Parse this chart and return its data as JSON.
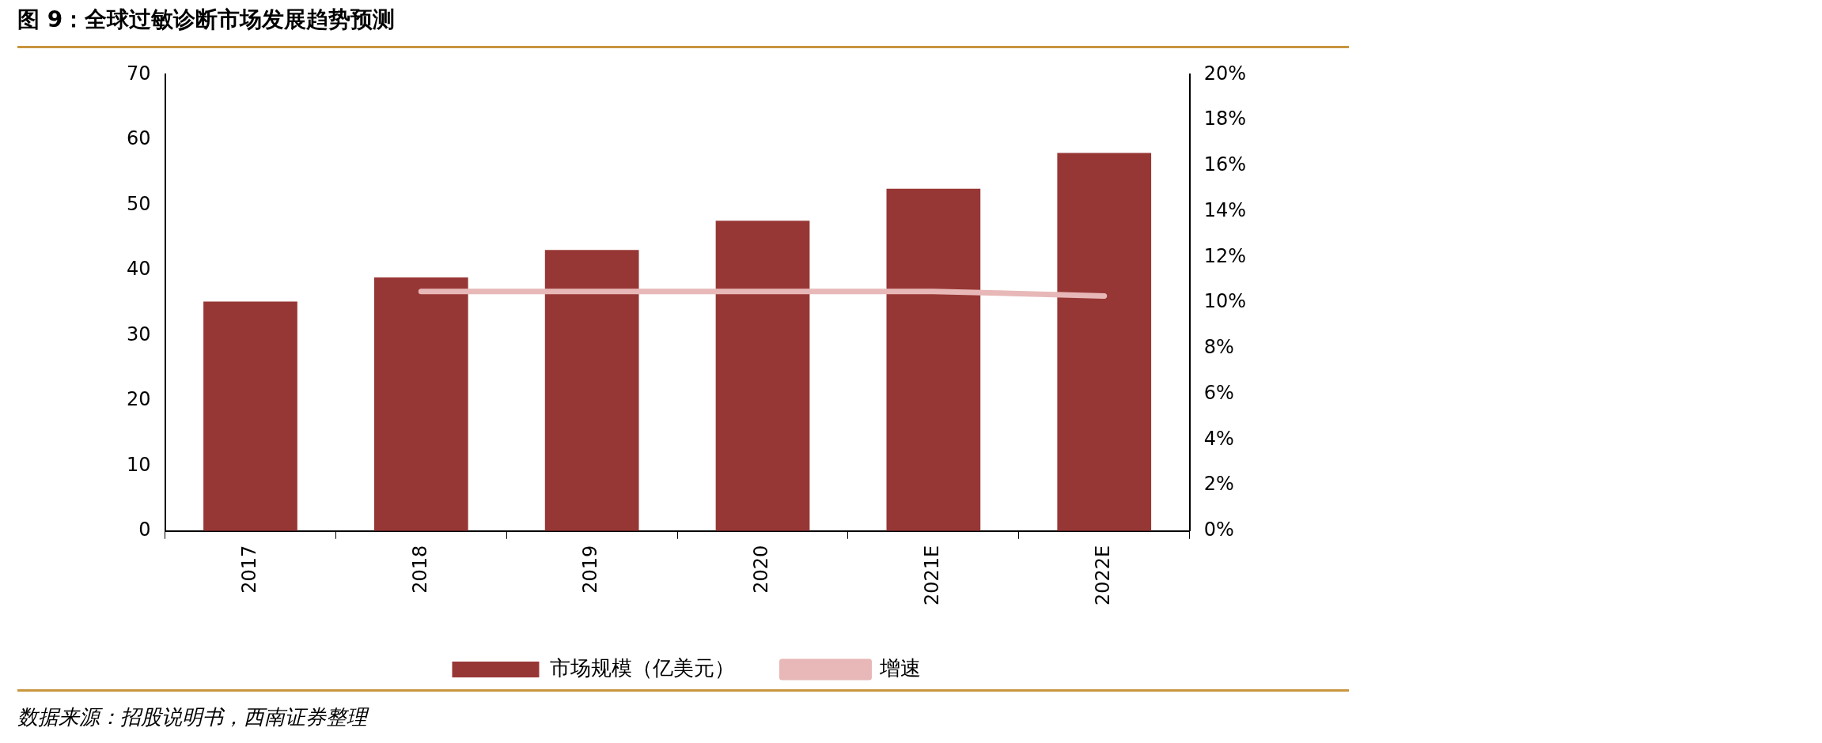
{
  "chart_data": {
    "type": "bar",
    "title": "图 9：全球过敏诊断市场发展趋势预测",
    "categories": [
      "2017",
      "2018",
      "2019",
      "2020",
      "2021E",
      "2022E"
    ],
    "series": [
      {
        "name": "市场规模（亿美元）",
        "color": "#973735",
        "values": [
          35.2,
          38.9,
          43.1,
          47.6,
          52.5,
          58.0
        ]
      },
      {
        "name": "增速",
        "type": "line",
        "axis": "y2",
        "color": "#e8b8b8",
        "values": [
          null,
          10.5,
          10.5,
          10.5,
          10.5,
          10.3
        ]
      }
    ],
    "ylim": [
      0,
      70
    ],
    "yticks": [
      0,
      10,
      20,
      30,
      40,
      50,
      60,
      70
    ],
    "y2lim": [
      0,
      20
    ],
    "y2ticks": [
      {
        "value": 0,
        "label": "0%"
      },
      {
        "value": 2,
        "label": "2%"
      },
      {
        "value": 4,
        "label": "4%"
      },
      {
        "value": 6,
        "label": "6%"
      },
      {
        "value": 8,
        "label": "8%"
      },
      {
        "value": 10,
        "label": "10%"
      },
      {
        "value": 12,
        "label": "12%"
      },
      {
        "value": 14,
        "label": "14%"
      },
      {
        "value": 16,
        "label": "16%"
      },
      {
        "value": 18,
        "label": "18%"
      },
      {
        "value": 20,
        "label": "20%"
      }
    ],
    "grid": false,
    "legend": "bottom",
    "marker": "none",
    "line_style": "solid",
    "annotations": [
      "数据来源：招股说明书，西南证券整理"
    ]
  }
}
